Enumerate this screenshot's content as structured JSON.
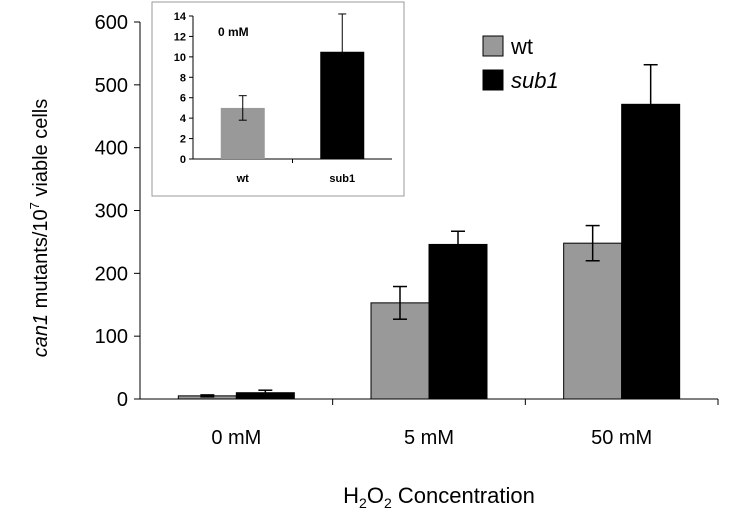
{
  "chart_data": [
    {
      "type": "bar",
      "xlabel_parts": [
        "H",
        "2",
        "O",
        "2",
        " Concentration"
      ],
      "ylabel_parts": [
        "can1",
        " mutants/10",
        "7",
        " viable cells"
      ],
      "categories": [
        "0 mM",
        "5 mM",
        "50 mM"
      ],
      "yticks": [
        "0",
        "100",
        "200",
        "300",
        "400",
        "500",
        "600"
      ],
      "ylim": [
        0,
        600
      ],
      "series": [
        {
          "name": "wt",
          "values": [
            5,
            153,
            248
          ],
          "errors": [
            1.5,
            26,
            28
          ],
          "color": "#999999"
        },
        {
          "name": "sub1",
          "values": [
            10,
            246,
            469
          ],
          "errors": [
            4,
            21,
            63
          ],
          "color": "#000000"
        }
      ],
      "legend_position": "top-right",
      "grid": false
    },
    {
      "type": "bar",
      "title": "0 mM",
      "categories": [
        "wt",
        "sub1"
      ],
      "yticks": [
        "0",
        "2",
        "4",
        "6",
        "8",
        "10",
        "12",
        "14"
      ],
      "ylim": [
        0,
        14
      ],
      "values": [
        5,
        10.5
      ],
      "errors": [
        1.2,
        3.7
      ],
      "colors": [
        "#999999",
        "#000000"
      ],
      "grid": false
    }
  ]
}
